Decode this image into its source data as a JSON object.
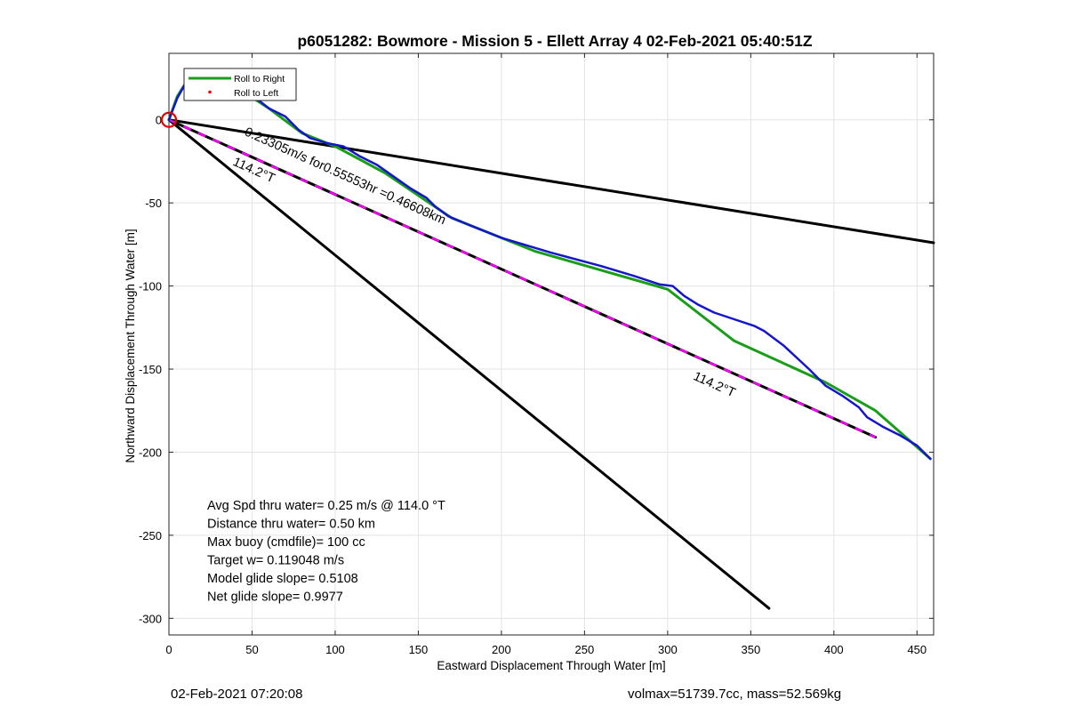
{
  "footer": {
    "timestamp": "02-Feb-2021 07:20:08",
    "volmax_mass": "volmax=51739.7cc, mass=52.569kg"
  },
  "chart_data": {
    "type": "line",
    "title": "p6051282: Bowmore - Mission 5 - Ellett Array 4 02-Feb-2021 05:40:51Z",
    "xlabel": "Eastward Displacement Through Water [m]",
    "ylabel": "Northward Displacement Through Water [m]",
    "xlim": [
      0,
      460
    ],
    "ylim": [
      -310,
      40
    ],
    "xticks": [
      0,
      50,
      100,
      150,
      200,
      250,
      300,
      350,
      400,
      450
    ],
    "yticks": [
      -300,
      -250,
      -200,
      -150,
      -100,
      -50,
      0
    ],
    "xtick_labels": [
      "0",
      "50",
      "100",
      "150",
      "200",
      "250",
      "300",
      "350",
      "400",
      "450"
    ],
    "ytick_labels": [
      "-300",
      "-250",
      "-200",
      "-150",
      "-100",
      "-50",
      "0"
    ],
    "grid": true,
    "legend": {
      "position": "top-left",
      "entries": [
        {
          "label": "Roll to Right",
          "color": "#1a9e1a",
          "style": "line"
        },
        {
          "label": "Roll to Left",
          "color": "#ff0000",
          "style": "point"
        }
      ]
    },
    "series": [
      {
        "name": "Roll to Right",
        "color": "#1a9e1a",
        "x": [
          0,
          5,
          10,
          18,
          26,
          40,
          60,
          80,
          100,
          130,
          170,
          220,
          300,
          340,
          395,
          425,
          458
        ],
        "y": [
          0,
          14,
          22,
          25,
          24,
          20,
          7,
          -8,
          -16,
          -32,
          -59,
          -79,
          -102,
          -133,
          -158,
          -175,
          -204
        ]
      },
      {
        "color": "#1515cc",
        "x": [
          0,
          5,
          10,
          18,
          26,
          40,
          55,
          60,
          70,
          78,
          85,
          95,
          105,
          115,
          125,
          135,
          145,
          155,
          160,
          168,
          180,
          200,
          230,
          260,
          280,
          295,
          303,
          310,
          318,
          328,
          340,
          352,
          358,
          370,
          385,
          395,
          405,
          415,
          420,
          430,
          440,
          450,
          458
        ],
        "y": [
          0,
          13,
          22,
          25,
          24,
          20,
          11,
          7,
          2,
          -6,
          -11,
          -14,
          -16,
          -22,
          -27,
          -34,
          -41,
          -47,
          -52,
          -58,
          -63,
          -71,
          -80,
          -88,
          -94,
          -99,
          -100,
          -106,
          -111,
          -116,
          -120,
          -124,
          -127,
          -136,
          -150,
          -160,
          -166,
          -173,
          -179,
          -185,
          -190,
          -196,
          -204
        ]
      },
      {
        "color": "#000000",
        "x": [
          0,
          460
        ],
        "y": [
          0,
          -74
        ]
      },
      {
        "color": "#000000",
        "x": [
          0,
          361
        ],
        "y": [
          0,
          -294
        ]
      },
      {
        "color": "#000000",
        "dash_color": "#ff00ff",
        "x": [
          0,
          425
        ],
        "y": [
          0,
          -191
        ]
      }
    ],
    "start_marker": {
      "x": 0,
      "y": 0,
      "color": "#e00000"
    },
    "annotations": [
      {
        "text": "0.23305m/s for0.55553hr =0.46608km",
        "x": 45,
        "y": -9,
        "angle": 24.2
      },
      {
        "text": "114.2°T",
        "x": 38,
        "y": -27,
        "angle": 24.2
      },
      {
        "text": "114.2°T",
        "x": 315,
        "y": -156,
        "angle": 24.2
      }
    ],
    "stats": [
      "Avg Spd thru water=  0.25 m/s @ 114.0 °T",
      "Distance thru water=  0.50 km",
      "Max buoy (cmdfile)= 100 cc",
      "Target w= 0.119048 m/s",
      "Model glide slope= 0.5108",
      "Net glide slope= 0.9977"
    ]
  }
}
